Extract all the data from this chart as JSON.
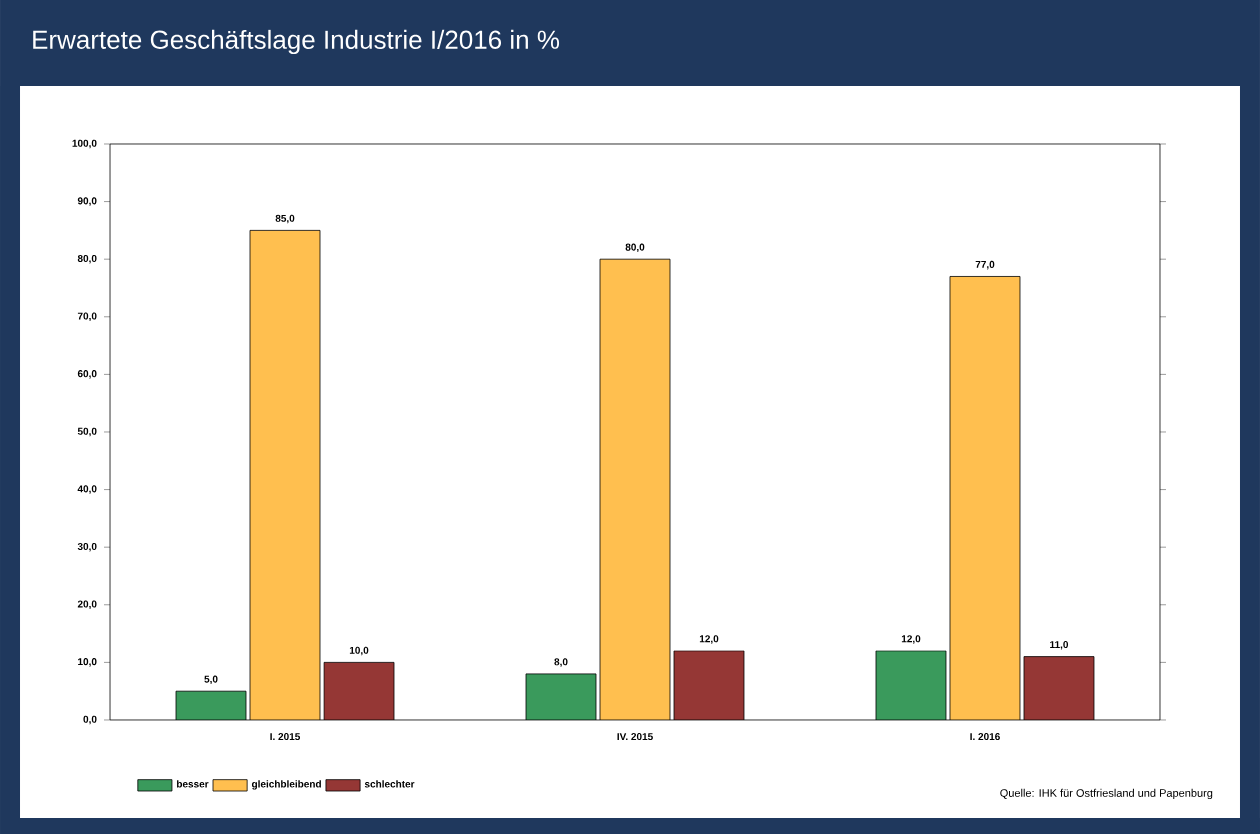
{
  "chart_data": {
    "type": "bar",
    "title": "Erwartete Geschäftslage Industrie I/2016 in %",
    "categories": [
      "I. 2015",
      "IV. 2015",
      "I. 2016"
    ],
    "series": [
      {
        "name": "besser",
        "color": "#3a9a5c",
        "values": [
          5,
          8,
          12
        ],
        "value_labels": [
          "5,0",
          "8,0",
          "12,0"
        ]
      },
      {
        "name": "gleichbleibend",
        "color": "#ffbf4f",
        "values": [
          85,
          80,
          77
        ],
        "value_labels": [
          "85,0",
          "80,0",
          "77,0"
        ]
      },
      {
        "name": "schlechter",
        "color": "#953735",
        "values": [
          10,
          12,
          11
        ],
        "value_labels": [
          "10,0",
          "12,0",
          "11,0"
        ]
      }
    ],
    "ylim": [
      0,
      100
    ],
    "yticks": [
      {
        "value": 0,
        "label": "0,0"
      },
      {
        "value": 10,
        "label": "10,0"
      },
      {
        "value": 20,
        "label": "20,0"
      },
      {
        "value": 30,
        "label": "30,0"
      },
      {
        "value": 40,
        "label": "40,0"
      },
      {
        "value": 50,
        "label": "50,0"
      },
      {
        "value": 60,
        "label": "60,0"
      },
      {
        "value": 70,
        "label": "70,0"
      },
      {
        "value": 80,
        "label": "80,0"
      },
      {
        "value": 90,
        "label": "90,0"
      },
      {
        "value": 100,
        "label": "100,0"
      }
    ],
    "legend": "bottom",
    "grid": false,
    "annotations": [
      "Quelle: IHK für Ostfriesland und Papenburg"
    ]
  }
}
